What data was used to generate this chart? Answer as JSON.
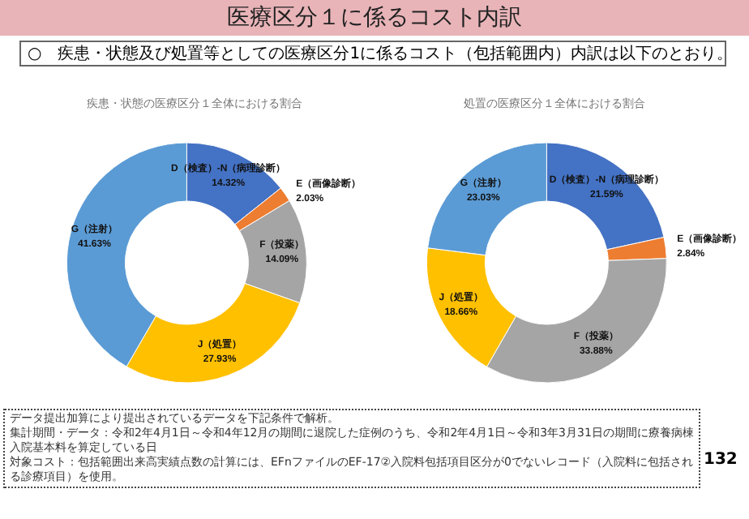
{
  "chart_data": [
    {
      "type": "other",
      "title": "医療区分１に係るコスト内訳",
      "annotations": [
        "○　疾患・状態及び処置等としての医療区分1に係るコスト（包括範囲内）内訳は以下のとおり。"
      ]
    },
    {
      "type": "donut",
      "title": "疾患・状態の医療区分１全体における割合",
      "categories": [
        "D（検査）-N（病理診断）",
        "E（画像診断）",
        "F（投薬）",
        "J（処置）",
        "G（注射）"
      ],
      "values": [
        14.32,
        2.03,
        14.09,
        27.93,
        41.63
      ],
      "value_labels": [
        "14.32%",
        "2.03%",
        "14.09%",
        "27.93%",
        "41.63%"
      ],
      "colors": [
        "#4472c4",
        "#ed7d31",
        "#a5a5a5",
        "#ffc000",
        "#5b9bd5"
      ]
    },
    {
      "type": "donut",
      "title": "処置の医療区分１全体における割合",
      "categories": [
        "D（検査）-N（病理診断）",
        "E（画像診断）",
        "F（投薬）",
        "J（処置）",
        "G（注射）"
      ],
      "values": [
        21.59,
        2.84,
        33.88,
        18.66,
        23.03
      ],
      "value_labels": [
        "21.59%",
        "2.84%",
        "33.88%",
        "18.66%",
        "23.03%"
      ],
      "colors": [
        "#4472c4",
        "#ed7d31",
        "#a5a5a5",
        "#ffc000",
        "#5b9bd5"
      ]
    },
    {
      "type": "other",
      "annotations": [
        "データ提出加算により提出されているデータを下記条件で解析。",
        "集計期間・データ：令和2年4月1日～令和4年12月の期間に退院した症例のうち、令和2年4月1日～令和3年3月31日の期間に療養病棟入院基本料を算定している日",
        "対象コスト：包括範囲出来高実績点数の計算には、EFnファイルのEF-17②入院料包括項目区分が0でないレコード（入院料に包括される診療項目）を使用。",
        "132"
      ]
    }
  ]
}
